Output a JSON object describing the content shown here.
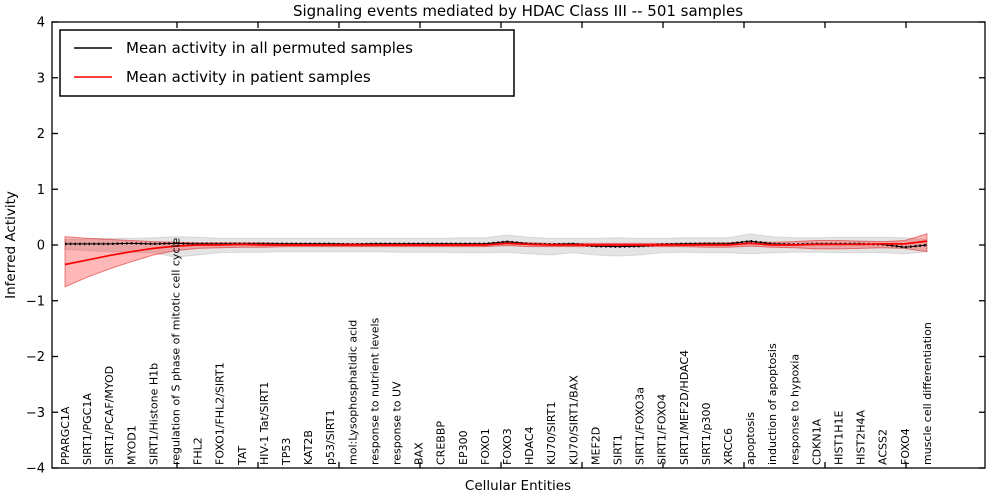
{
  "chart_data": {
    "type": "line",
    "title": "Signaling events mediated by HDAC Class III -- 501 samples",
    "xlabel": "Cellular Entities",
    "ylabel": "Inferred Activity",
    "ylim": [
      -4,
      4
    ],
    "yticks": [
      4,
      3,
      2,
      1,
      0,
      -1,
      -2,
      -3,
      -4
    ],
    "grid": false,
    "legend_position": "upper left",
    "categories": [
      "PPARGC1A",
      "SIRT1/PGC1A",
      "SIRT1/PCAF/MYOD",
      "MYOD1",
      "SIRT1/Histone H1b",
      "regulation of S phase of mitotic cell cycle",
      "FHL2",
      "FOXO1/FHL2/SIRT1",
      "TAT",
      "HIV-1 Tat/SIRT1",
      "TP53",
      "KAT2B",
      "p53/SIRT1",
      "mol:Lysophosphatidic acid",
      "response to nutrient levels",
      "response to UV",
      "BAX",
      "CREBBP",
      "EP300",
      "FOXO1",
      "FOXO3",
      "HDAC4",
      "KU70/SIRT1",
      "KU70/SIRT1/BAX",
      "MEF2D",
      "SIRT1",
      "SIRT1/FOXO3a",
      "SIRT1/FOXO4",
      "SIRT1/MEF2D/HDAC4",
      "SIRT1/p300",
      "XRCC6",
      "apoptosis",
      "induction of apoptosis",
      "response to hypoxia",
      "CDKN1A",
      "HIST1H1E",
      "HIST2H4A",
      "ACSS2",
      "FOXO4",
      "muscle cell differentiation"
    ],
    "series": [
      {
        "name": "Mean activity in all permuted samples",
        "color": "#000000",
        "values": [
          0.02,
          0.02,
          0.02,
          0.03,
          0.02,
          0.03,
          0.02,
          0.02,
          0.02,
          0.02,
          0.02,
          0.02,
          0.02,
          0.01,
          0.02,
          0.02,
          0.02,
          0.02,
          0.02,
          0.02,
          0.06,
          0.02,
          0.01,
          0.02,
          -0.02,
          -0.03,
          -0.02,
          0.01,
          0.02,
          0.02,
          0.02,
          0.07,
          0.02,
          0.01,
          0.02,
          0.02,
          0.02,
          0.01,
          -0.04,
          0.0
        ],
        "band": {
          "upper": [
            0.1,
            0.11,
            0.12,
            0.12,
            0.13,
            0.15,
            0.14,
            0.12,
            0.12,
            0.12,
            0.12,
            0.12,
            0.12,
            0.12,
            0.12,
            0.12,
            0.12,
            0.12,
            0.13,
            0.13,
            0.18,
            0.14,
            0.12,
            0.12,
            0.12,
            0.13,
            0.12,
            0.12,
            0.13,
            0.13,
            0.13,
            0.2,
            0.15,
            0.13,
            0.13,
            0.14,
            0.14,
            0.14,
            0.13,
            0.1
          ],
          "lower": [
            -0.08,
            -0.1,
            -0.12,
            -0.13,
            -0.14,
            -0.22,
            -0.18,
            -0.14,
            -0.13,
            -0.13,
            -0.12,
            -0.12,
            -0.12,
            -0.12,
            -0.12,
            -0.13,
            -0.13,
            -0.13,
            -0.14,
            -0.14,
            -0.13,
            -0.16,
            -0.18,
            -0.14,
            -0.18,
            -0.2,
            -0.18,
            -0.14,
            -0.13,
            -0.14,
            -0.14,
            -0.16,
            -0.14,
            -0.13,
            -0.13,
            -0.14,
            -0.14,
            -0.14,
            -0.16,
            -0.12
          ],
          "fill": "rgba(130,130,130,0.22)",
          "edge": "rgba(0,0,0,0.10)"
        }
      },
      {
        "name": "Mean activity in patient samples",
        "color": "#ff0000",
        "values": [
          -0.35,
          -0.27,
          -0.19,
          -0.12,
          -0.06,
          -0.02,
          0.0,
          0.0,
          0.01,
          0.0,
          0.0,
          0.0,
          0.0,
          0.0,
          0.0,
          0.0,
          0.0,
          0.0,
          0.0,
          0.0,
          0.03,
          0.01,
          0.0,
          0.0,
          0.0,
          0.0,
          0.0,
          0.0,
          0.0,
          0.0,
          0.0,
          0.03,
          0.0,
          0.0,
          0.01,
          0.01,
          0.01,
          0.02,
          0.02,
          0.07
        ],
        "band": {
          "upper": [
            0.15,
            0.12,
            0.1,
            0.08,
            0.06,
            0.05,
            0.04,
            0.04,
            0.04,
            0.04,
            0.03,
            0.03,
            0.03,
            0.03,
            0.03,
            0.03,
            0.03,
            0.03,
            0.03,
            0.03,
            0.06,
            0.04,
            0.03,
            0.03,
            0.03,
            0.03,
            0.03,
            0.03,
            0.03,
            0.04,
            0.04,
            0.06,
            0.05,
            0.06,
            0.08,
            0.08,
            0.07,
            0.06,
            0.08,
            0.2
          ],
          "lower": [
            -0.75,
            -0.58,
            -0.43,
            -0.3,
            -0.18,
            -0.1,
            -0.06,
            -0.05,
            -0.04,
            -0.04,
            -0.03,
            -0.03,
            -0.03,
            -0.03,
            -0.03,
            -0.03,
            -0.03,
            -0.03,
            -0.03,
            -0.03,
            -0.01,
            -0.03,
            -0.03,
            -0.03,
            -0.03,
            -0.03,
            -0.03,
            -0.03,
            -0.03,
            -0.04,
            -0.04,
            -0.02,
            -0.04,
            -0.05,
            -0.07,
            -0.07,
            -0.06,
            -0.05,
            -0.06,
            -0.12
          ],
          "fill": "rgba(255,0,0,0.28)",
          "edge": "rgba(215,0,0,0.45)"
        }
      }
    ]
  }
}
